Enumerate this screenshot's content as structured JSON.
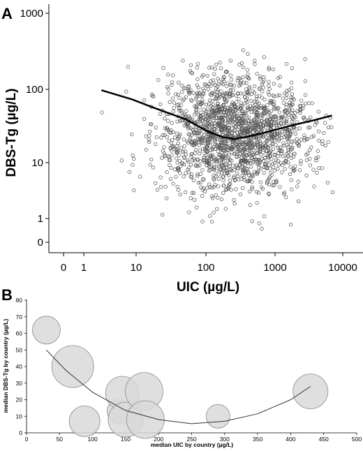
{
  "chart_data": [
    {
      "panel_label": "A",
      "type": "scatter",
      "xlabel": "UIC (µg/L)",
      "ylabel": "DBS-Tg (µg/L)",
      "x_scale": "log (with 0 shown at left)",
      "y_scale": "log (with 0 shown at bottom)",
      "x_ticks": [
        "0",
        "1",
        "10",
        "100",
        "1000",
        "10000"
      ],
      "y_ticks": [
        "0",
        "1",
        "10",
        "100",
        "1000"
      ],
      "xlim": [
        0,
        10000
      ],
      "ylim": [
        0,
        1000
      ],
      "marker": "open circle",
      "grid": false,
      "scatter_cloud": {
        "approx_points": 1800,
        "x_range": [
          1.5,
          4000
        ],
        "y_range": [
          0.3,
          300
        ],
        "center_x": 150,
        "center_y": 18
      },
      "trend_line": {
        "x": [
          1.8,
          5,
          10,
          30,
          60,
          100,
          150,
          250,
          500,
          1000,
          2000,
          3800
        ],
        "y": [
          75,
          55,
          42,
          28,
          19,
          15.5,
          14.5,
          16,
          19,
          23,
          27,
          32
        ]
      }
    },
    {
      "panel_label": "B",
      "type": "bubble",
      "xlabel": "median UIC by country (µg/L)",
      "ylabel": "median DBS-Tg by country (µg/L)",
      "xlim": [
        0,
        500
      ],
      "ylim": [
        0,
        80
      ],
      "x_ticks": [
        "0",
        "50",
        "100",
        "150",
        "200",
        "250",
        "300",
        "350",
        "400",
        "450",
        "500"
      ],
      "y_ticks": [
        "0",
        "10",
        "20",
        "30",
        "40",
        "50",
        "60",
        "70",
        "80"
      ],
      "grid": false,
      "bubbles": [
        {
          "x": 30,
          "y": 62,
          "size": 1.0
        },
        {
          "x": 70,
          "y": 40,
          "size": 1.5
        },
        {
          "x": 88,
          "y": 7,
          "size": 1.1
        },
        {
          "x": 140,
          "y": 13,
          "size": 0.85
        },
        {
          "x": 145,
          "y": 24,
          "size": 1.2
        },
        {
          "x": 150,
          "y": 8,
          "size": 1.25
        },
        {
          "x": 178,
          "y": 25,
          "size": 1.35
        },
        {
          "x": 180,
          "y": 8,
          "size": 1.35
        },
        {
          "x": 290,
          "y": 10,
          "size": 0.85
        },
        {
          "x": 430,
          "y": 25,
          "size": 1.25
        }
      ],
      "fit_curve": {
        "x": [
          30,
          60,
          100,
          150,
          200,
          250,
          300,
          350,
          400,
          430
        ],
        "y": [
          50,
          37.5,
          24.5,
          13.5,
          8,
          5.5,
          7,
          11.5,
          20,
          28
        ]
      }
    }
  ]
}
